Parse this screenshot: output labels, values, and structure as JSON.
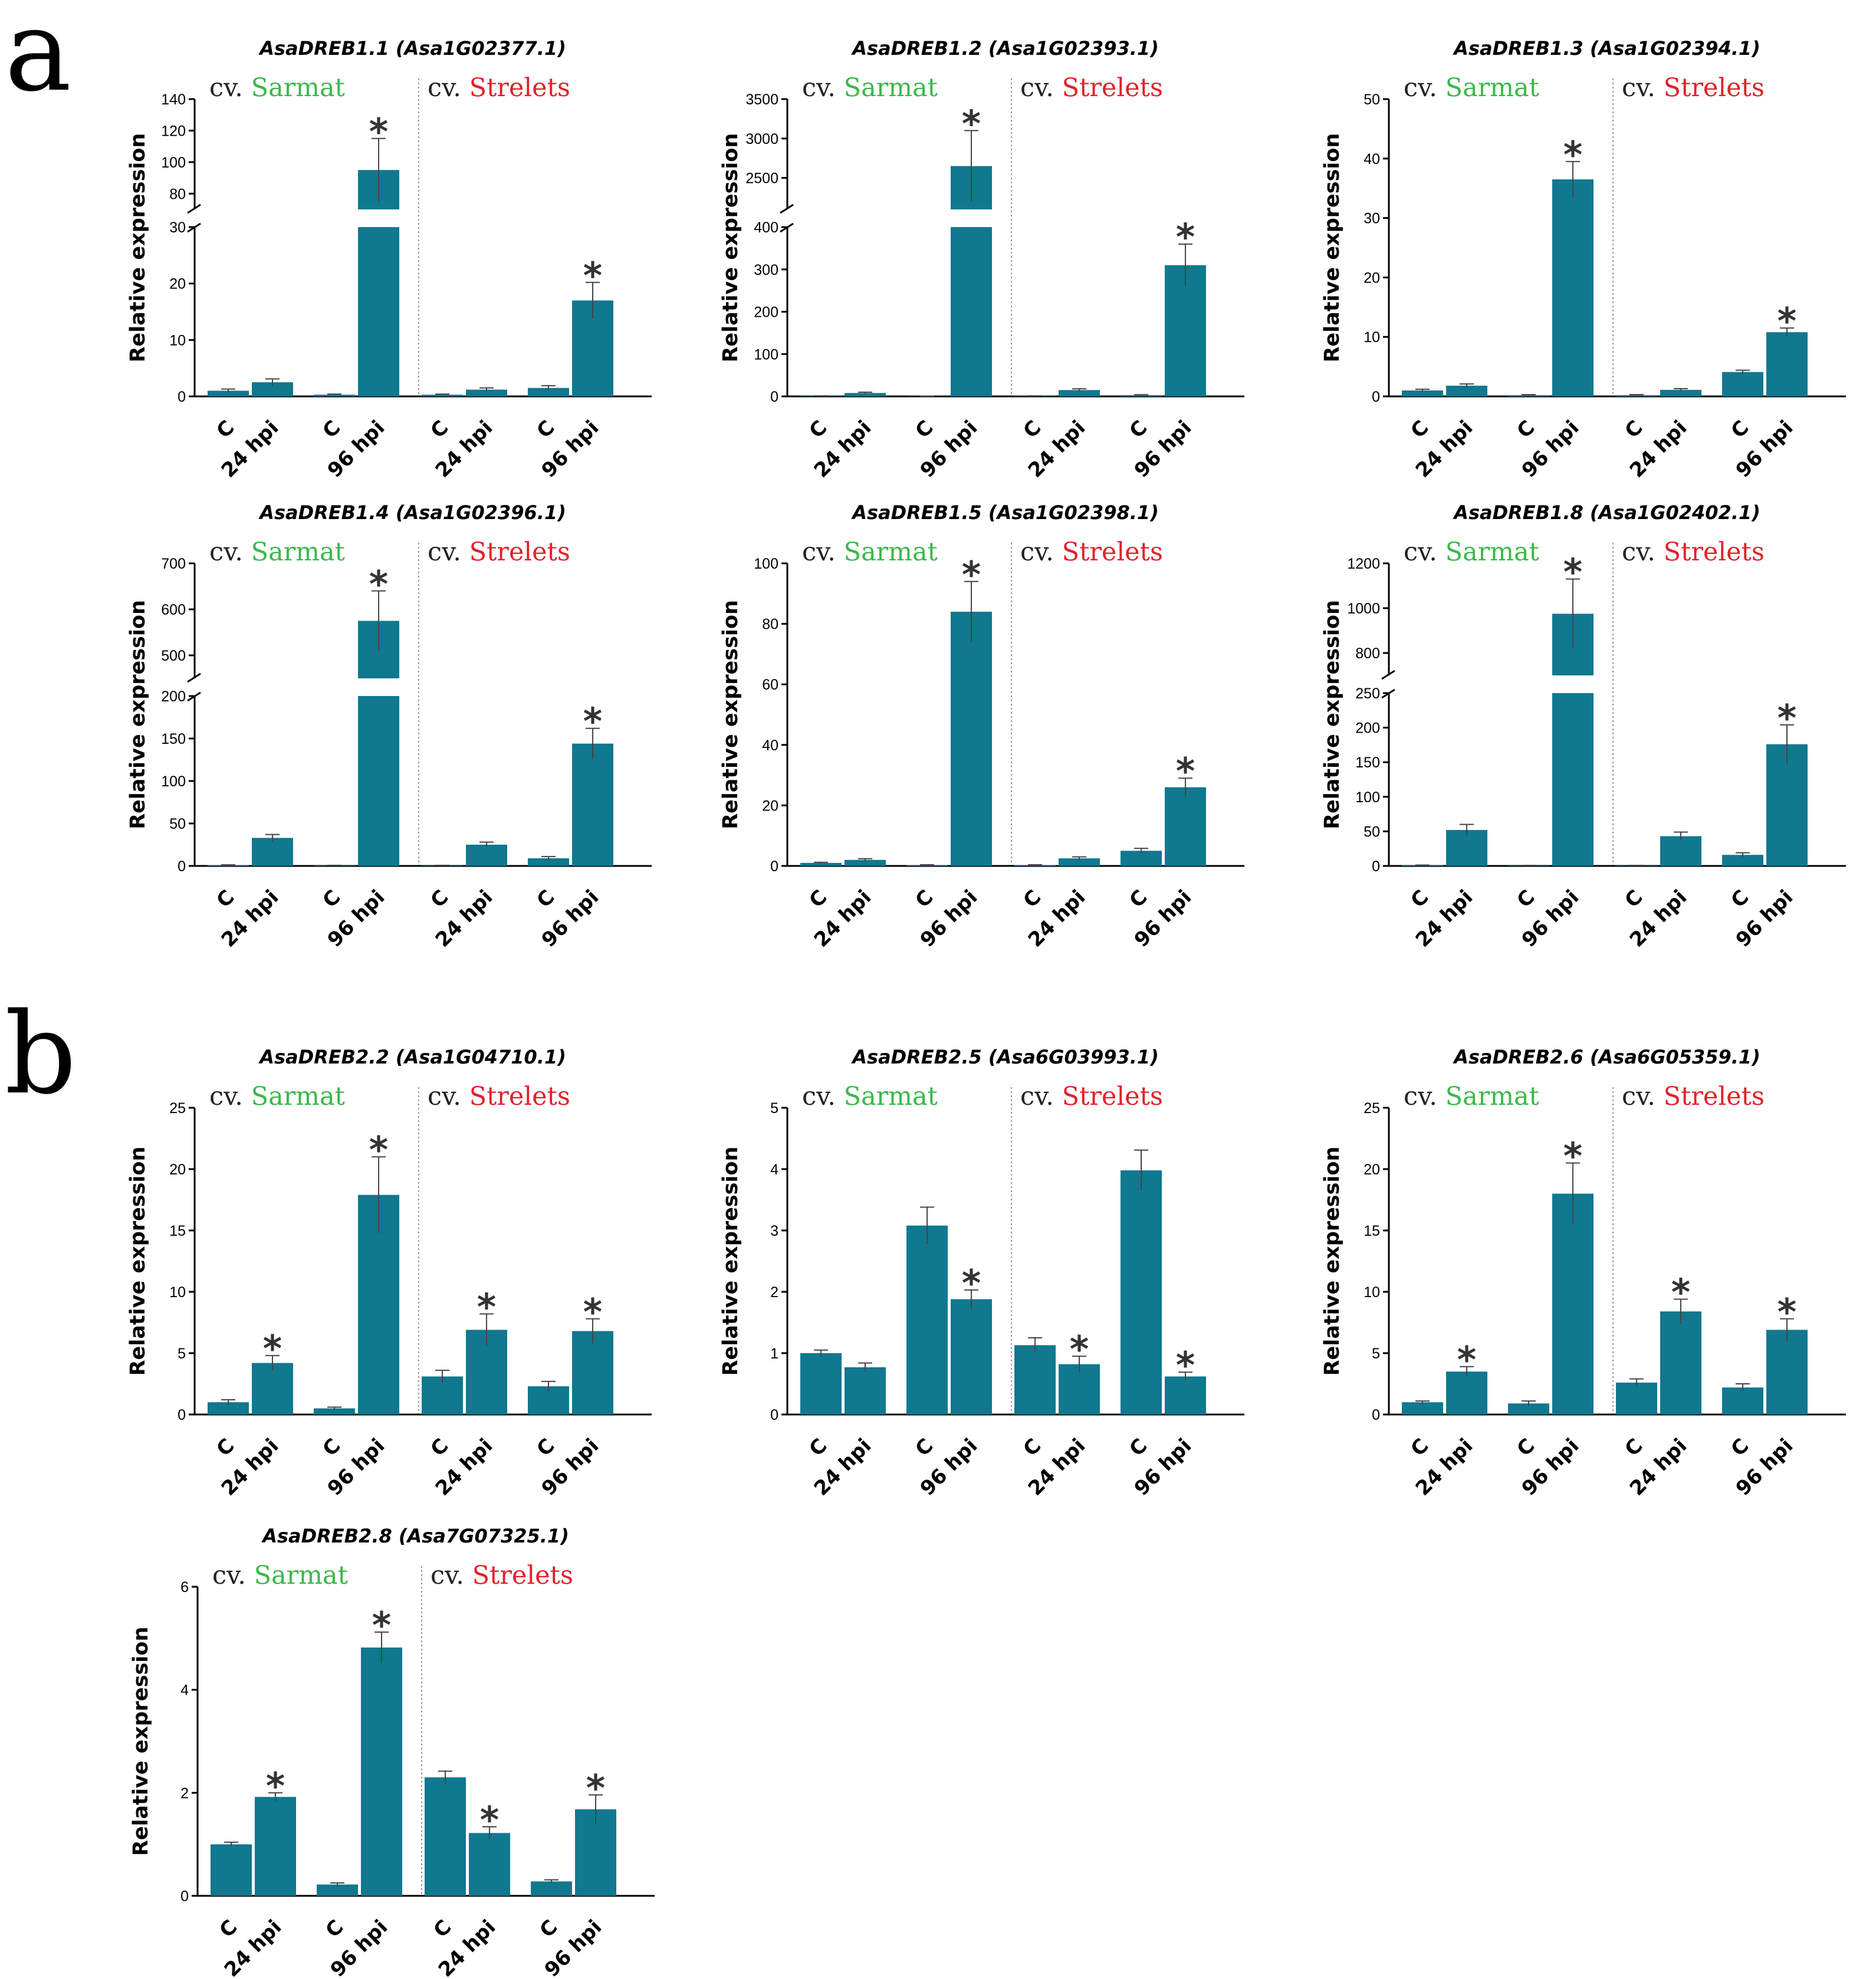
{
  "panels": [
    {
      "letter": "a"
    },
    {
      "letter": "b"
    }
  ],
  "colors": {
    "bar": "#10788f",
    "sarmat": "#3bb84a",
    "strelets": "#e4202a",
    "axis": "#000000",
    "divider": "#999999"
  },
  "chart_data": [
    {
      "type": "bar",
      "panel": "a",
      "title_prefix": "Asa",
      "title_gene": "DREB1.1",
      "title_locus": "(Asa1G02377.1)",
      "cultivar_prefix": "cv.",
      "cultivar1": "Sarmat",
      "cultivar2": "Strelets",
      "ylabel": "Relative expression",
      "categories": [
        "C",
        "24 hpi",
        "C",
        "96 hpi",
        "C",
        "24 hpi",
        "C",
        "96 hpi"
      ],
      "values": [
        1,
        2.5,
        0.3,
        95,
        0.3,
        1.2,
        1.5,
        17
      ],
      "errors": [
        0.3,
        0.6,
        0.1,
        20,
        0.1,
        0.3,
        0.4,
        3.2
      ],
      "significant": [
        false,
        false,
        false,
        true,
        false,
        false,
        false,
        true
      ],
      "significance_mark": "*",
      "axis_break": {
        "lower": [
          0,
          30
        ],
        "upper": [
          70,
          140
        ]
      },
      "yticks_lower": [
        0,
        10,
        20,
        30
      ],
      "yticks_upper": [
        80,
        100,
        120,
        140
      ]
    },
    {
      "type": "bar",
      "panel": "a",
      "title_prefix": "Asa",
      "title_gene": "DREB1.2",
      "title_locus": "(Asa1G02393.1)",
      "cultivar_prefix": "cv.",
      "cultivar1": "Sarmat",
      "cultivar2": "Strelets",
      "ylabel": "Relative expression",
      "categories": [
        "C",
        "24 hpi",
        "C",
        "96 hpi",
        "C",
        "24 hpi",
        "C",
        "96 hpi"
      ],
      "values": [
        1,
        8,
        0.5,
        2650,
        1,
        15,
        3,
        310
      ],
      "errors": [
        0.3,
        2,
        0.2,
        450,
        0.3,
        3,
        1,
        50
      ],
      "significant": [
        false,
        false,
        false,
        true,
        false,
        false,
        false,
        true
      ],
      "significance_mark": "*",
      "axis_break": {
        "lower": [
          0,
          400
        ],
        "upper": [
          2100,
          3500
        ]
      },
      "yticks_lower": [
        0,
        100,
        200,
        300,
        400
      ],
      "yticks_upper": [
        2500,
        3000,
        3500
      ]
    },
    {
      "type": "bar",
      "panel": "a",
      "title_prefix": "Asa",
      "title_gene": "DREB1.3",
      "title_locus": "(Asa1G02394.1)",
      "cultivar_prefix": "cv.",
      "cultivar1": "Sarmat",
      "cultivar2": "Strelets",
      "ylabel": "Relative expression",
      "categories": [
        "C",
        "24 hpi",
        "C",
        "96 hpi",
        "C",
        "24 hpi",
        "C",
        "96 hpi"
      ],
      "values": [
        1,
        1.8,
        0.2,
        36.5,
        0.2,
        1.1,
        4.1,
        10.8
      ],
      "errors": [
        0.2,
        0.3,
        0.1,
        3,
        0.1,
        0.2,
        0.3,
        0.7
      ],
      "significant": [
        false,
        false,
        false,
        true,
        false,
        false,
        false,
        true
      ],
      "significance_mark": "*",
      "ylim": [
        0,
        50
      ],
      "yticks": [
        0,
        10,
        20,
        30,
        40,
        50
      ]
    },
    {
      "type": "bar",
      "panel": "a",
      "title_prefix": "Asa",
      "title_gene": "DREB1.4",
      "title_locus": "(Asa1G02396.1)",
      "cultivar_prefix": "cv.",
      "cultivar1": "Sarmat",
      "cultivar2": "Strelets",
      "ylabel": "Relative expression",
      "categories": [
        "C",
        "24 hpi",
        "C",
        "96 hpi",
        "C",
        "24 hpi",
        "C",
        "96 hpi"
      ],
      "values": [
        1,
        33,
        0.5,
        575,
        0.5,
        25,
        9,
        144
      ],
      "errors": [
        0.3,
        4,
        0.2,
        65,
        0.2,
        3,
        2,
        18
      ],
      "significant": [
        false,
        false,
        false,
        true,
        false,
        false,
        false,
        true
      ],
      "significance_mark": "*",
      "axis_break": {
        "lower": [
          0,
          200
        ],
        "upper": [
          450,
          700
        ]
      },
      "yticks_lower": [
        0,
        50,
        100,
        150,
        200
      ],
      "yticks_upper": [
        500,
        600,
        700
      ]
    },
    {
      "type": "bar",
      "panel": "a",
      "title_prefix": "Asa",
      "title_gene": "DREB1.5",
      "title_locus": "(Asa1G02398.1)",
      "cultivar_prefix": "cv.",
      "cultivar1": "Sarmat",
      "cultivar2": "Strelets",
      "ylabel": "Relative expression",
      "categories": [
        "C",
        "24 hpi",
        "C",
        "96 hpi",
        "C",
        "24 hpi",
        "C",
        "96 hpi"
      ],
      "values": [
        1,
        2,
        0.3,
        84,
        0.3,
        2.5,
        5,
        26
      ],
      "errors": [
        0.2,
        0.4,
        0.1,
        10,
        0.1,
        0.5,
        0.8,
        3
      ],
      "significant": [
        false,
        false,
        false,
        true,
        false,
        false,
        false,
        true
      ],
      "significance_mark": "*",
      "ylim": [
        0,
        100
      ],
      "yticks": [
        0,
        20,
        40,
        60,
        80,
        100
      ]
    },
    {
      "type": "bar",
      "panel": "a",
      "title_prefix": "Asa",
      "title_gene": "DREB1.8",
      "title_locus": "(Asa1G02402.1)",
      "cultivar_prefix": "cv.",
      "cultivar1": "Sarmat",
      "cultivar2": "Strelets",
      "ylabel": "Relative expression",
      "categories": [
        "C",
        "24 hpi",
        "C",
        "96 hpi",
        "C",
        "24 hpi",
        "C",
        "96 hpi"
      ],
      "values": [
        1,
        52,
        0.5,
        975,
        0.5,
        43,
        16,
        176
      ],
      "errors": [
        0.3,
        8,
        0.2,
        155,
        0.2,
        6,
        3,
        28
      ],
      "significant": [
        false,
        false,
        false,
        true,
        false,
        false,
        false,
        true
      ],
      "significance_mark": "*",
      "axis_break": {
        "lower": [
          0,
          250
        ],
        "upper": [
          700,
          1200
        ]
      },
      "yticks_lower": [
        0,
        50,
        100,
        150,
        200,
        250
      ],
      "yticks_upper": [
        800,
        1000,
        1200
      ]
    },
    {
      "type": "bar",
      "panel": "b",
      "title_prefix": "Asa",
      "title_gene": "DREB2.2",
      "title_locus": "(Asa1G04710.1)",
      "cultivar_prefix": "cv.",
      "cultivar1": "Sarmat",
      "cultivar2": "Strelets",
      "ylabel": "Relative expression",
      "categories": [
        "C",
        "24 hpi",
        "C",
        "96 hpi",
        "C",
        "24 hpi",
        "C",
        "96 hpi"
      ],
      "values": [
        1,
        4.2,
        0.5,
        17.9,
        3.1,
        6.9,
        2.3,
        6.8
      ],
      "errors": [
        0.2,
        0.6,
        0.1,
        3.1,
        0.5,
        1.3,
        0.4,
        1
      ],
      "significant": [
        false,
        true,
        false,
        true,
        false,
        true,
        false,
        true
      ],
      "significance_mark": "*",
      "ylim": [
        0,
        25
      ],
      "yticks": [
        0,
        5,
        10,
        15,
        20,
        25
      ]
    },
    {
      "type": "bar",
      "panel": "b",
      "title_prefix": "Asa",
      "title_gene": "DREB2.5",
      "title_locus": "(Asa6G03993.1)",
      "cultivar_prefix": "cv.",
      "cultivar1": "Sarmat",
      "cultivar2": "Strelets",
      "ylabel": "Relative expression",
      "categories": [
        "C",
        "24 hpi",
        "C",
        "96 hpi",
        "C",
        "24 hpi",
        "C",
        "96 hpi"
      ],
      "values": [
        1,
        0.77,
        3.08,
        1.88,
        1.13,
        0.82,
        3.98,
        0.62
      ],
      "errors": [
        0.05,
        0.07,
        0.3,
        0.15,
        0.12,
        0.13,
        0.33,
        0.07
      ],
      "significant": [
        false,
        false,
        false,
        true,
        false,
        true,
        false,
        true
      ],
      "significance_mark": "*",
      "ylim": [
        0,
        5
      ],
      "yticks": [
        0,
        1,
        2,
        3,
        4,
        5
      ]
    },
    {
      "type": "bar",
      "panel": "b",
      "title_prefix": "Asa",
      "title_gene": "DREB2.6",
      "title_locus": "(Asa6G05359.1)",
      "cultivar_prefix": "cv.",
      "cultivar1": "Sarmat",
      "cultivar2": "Strelets",
      "ylabel": "Relative expression",
      "categories": [
        "C",
        "24 hpi",
        "C",
        "96 hpi",
        "C",
        "24 hpi",
        "C",
        "96 hpi"
      ],
      "values": [
        1,
        3.5,
        0.9,
        18,
        2.6,
        8.4,
        2.2,
        6.9
      ],
      "errors": [
        0.1,
        0.4,
        0.2,
        2.5,
        0.3,
        1,
        0.3,
        0.9
      ],
      "significant": [
        false,
        true,
        false,
        true,
        false,
        true,
        false,
        true
      ],
      "significance_mark": "*",
      "ylim": [
        0,
        25
      ],
      "yticks": [
        0,
        5,
        10,
        15,
        20,
        25
      ]
    },
    {
      "type": "bar",
      "panel": "b",
      "title_prefix": "Asa",
      "title_gene": "DREB2.8",
      "title_locus": "(Asa7G07325.1)",
      "cultivar_prefix": "cv.",
      "cultivar1": "Sarmat",
      "cultivar2": "Strelets",
      "ylabel": "Relative expression",
      "categories": [
        "C",
        "24 hpi",
        "C",
        "96 hpi",
        "C",
        "24 hpi",
        "C",
        "96 hpi"
      ],
      "values": [
        1,
        1.92,
        0.22,
        4.82,
        2.3,
        1.22,
        0.28,
        1.68
      ],
      "errors": [
        0.04,
        0.08,
        0.03,
        0.3,
        0.12,
        0.12,
        0.03,
        0.28
      ],
      "significant": [
        false,
        true,
        false,
        true,
        false,
        true,
        false,
        true
      ],
      "significance_mark": "*",
      "ylim": [
        0,
        6
      ],
      "yticks": [
        0,
        2,
        4,
        6
      ]
    }
  ]
}
